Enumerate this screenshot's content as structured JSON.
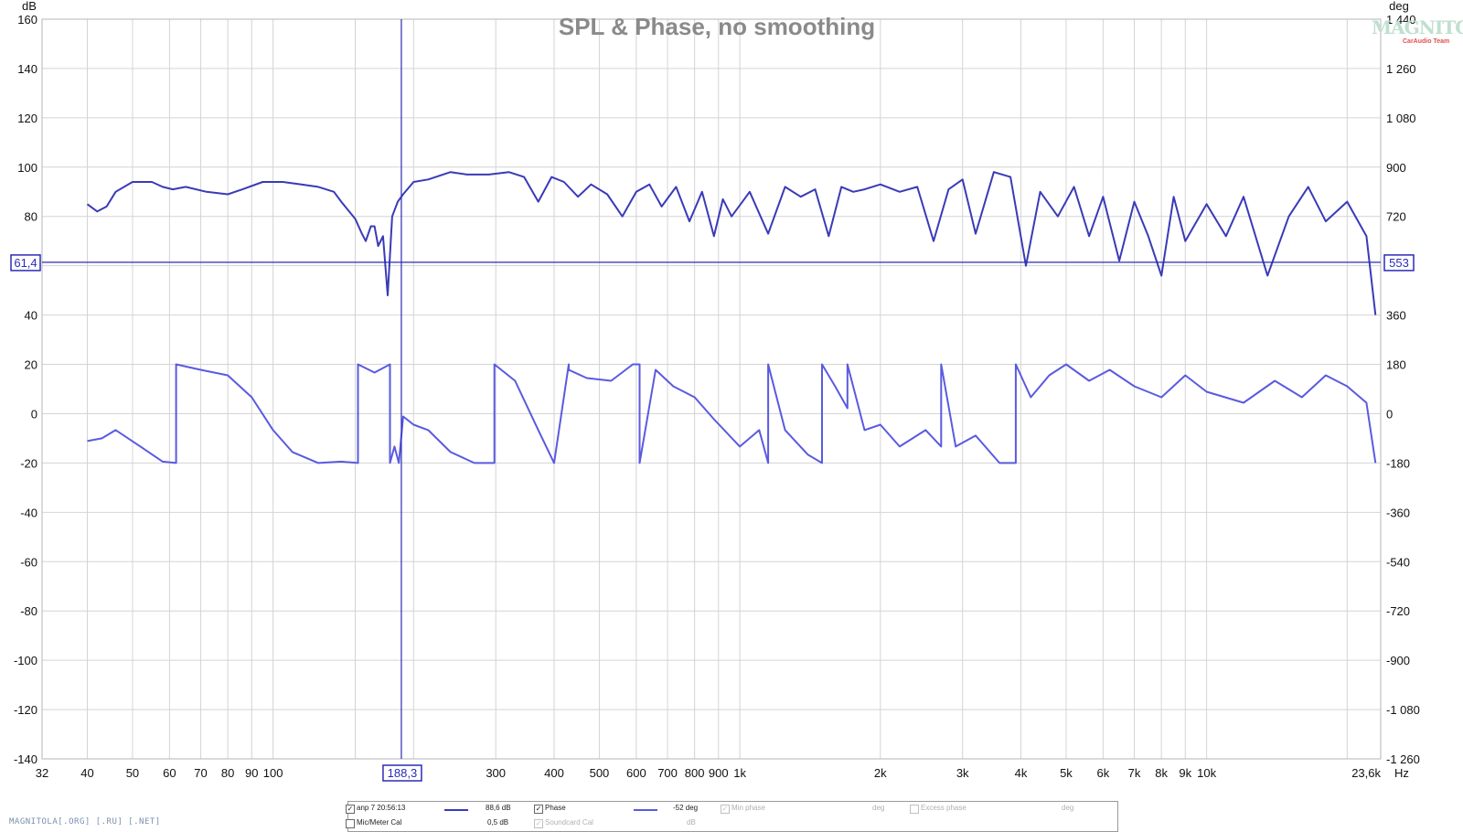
{
  "chart_data": {
    "type": "line",
    "title": "SPL & Phase, no smoothing",
    "xscale": "log",
    "xlim": [
      32,
      23600
    ],
    "ylim_left": [
      -140,
      160
    ],
    "ylim_right": [
      -1260,
      1440
    ],
    "left_unit": "dB",
    "right_unit": "deg",
    "x_unit": "Hz",
    "grid": true,
    "x_tick_labels": [
      {
        "v": 32,
        "t": "32"
      },
      {
        "v": 40,
        "t": "40"
      },
      {
        "v": 50,
        "t": "50"
      },
      {
        "v": 60,
        "t": "60"
      },
      {
        "v": 70,
        "t": "70"
      },
      {
        "v": 80,
        "t": "80"
      },
      {
        "v": 90,
        "t": "90"
      },
      {
        "v": 100,
        "t": "100"
      },
      {
        "v": 300,
        "t": "300"
      },
      {
        "v": 400,
        "t": "400"
      },
      {
        "v": 500,
        "t": "500"
      },
      {
        "v": 600,
        "t": "600"
      },
      {
        "v": 700,
        "t": "700"
      },
      {
        "v": 800,
        "t": "800"
      },
      {
        "v": 900,
        "t": "900"
      },
      {
        "v": 1000,
        "t": "1k"
      },
      {
        "v": 2000,
        "t": "2k"
      },
      {
        "v": 3000,
        "t": "3k"
      },
      {
        "v": 4000,
        "t": "4k"
      },
      {
        "v": 5000,
        "t": "5k"
      },
      {
        "v": 6000,
        "t": "6k"
      },
      {
        "v": 7000,
        "t": "7k"
      },
      {
        "v": 8000,
        "t": "8k"
      },
      {
        "v": 9000,
        "t": "9k"
      },
      {
        "v": 10000,
        "t": "10k"
      },
      {
        "v": 23600,
        "t": "23,6k"
      }
    ],
    "x_grid": [
      32,
      40,
      50,
      60,
      70,
      80,
      90,
      100,
      150,
      200,
      300,
      400,
      500,
      600,
      700,
      800,
      900,
      1000,
      2000,
      3000,
      4000,
      5000,
      6000,
      7000,
      8000,
      9000,
      10000,
      20000
    ],
    "y_left_ticks": [
      {
        "v": 160,
        "t": "160"
      },
      {
        "v": 140,
        "t": "140"
      },
      {
        "v": 120,
        "t": "120"
      },
      {
        "v": 100,
        "t": "100"
      },
      {
        "v": 80,
        "t": "80"
      },
      {
        "v": 40,
        "t": "40"
      },
      {
        "v": 20,
        "t": "20"
      },
      {
        "v": 0,
        "t": "0"
      },
      {
        "v": -20,
        "t": "-20"
      },
      {
        "v": -40,
        "t": "-40"
      },
      {
        "v": -60,
        "t": "-60"
      },
      {
        "v": -80,
        "t": "-80"
      },
      {
        "v": -100,
        "t": "-100"
      },
      {
        "v": -120,
        "t": "-120"
      },
      {
        "v": -140,
        "t": "-140"
      }
    ],
    "y_right_ticks": [
      {
        "v": 1440,
        "t": "1 440"
      },
      {
        "v": 1260,
        "t": "1 260"
      },
      {
        "v": 1080,
        "t": "1 080"
      },
      {
        "v": 900,
        "t": "900"
      },
      {
        "v": 720,
        "t": "720"
      },
      {
        "v": 360,
        "t": "360"
      },
      {
        "v": 180,
        "t": "180"
      },
      {
        "v": 0,
        "t": "0"
      },
      {
        "v": -180,
        "t": "-180"
      },
      {
        "v": -360,
        "t": "-360"
      },
      {
        "v": -540,
        "t": "-540"
      },
      {
        "v": -720,
        "t": "-720"
      },
      {
        "v": -900,
        "t": "-900"
      },
      {
        "v": -1080,
        "t": "-1 080"
      },
      {
        "v": -1260,
        "t": "-1 260"
      }
    ],
    "y_grid_left": [
      160,
      140,
      120,
      100,
      80,
      60,
      40,
      20,
      0,
      -20,
      -40,
      -60,
      -80,
      -100,
      -120,
      -140
    ],
    "cursor": {
      "x": 188.3,
      "x_label": "188,3",
      "y": 61.4,
      "y_label": "61,4",
      "y_right_label": "553"
    },
    "series": [
      {
        "name": "anp 7 20:56:13",
        "axis": "left",
        "color": "#3a3ab8",
        "x": [
          40,
          42,
          44,
          46,
          50,
          55,
          58,
          61,
          65,
          72,
          80,
          86,
          95,
          105,
          115,
          125,
          135,
          140,
          150,
          155,
          158,
          162,
          165,
          168,
          172,
          176,
          180,
          185,
          190,
          200,
          215,
          240,
          260,
          290,
          320,
          345,
          370,
          395,
          420,
          450,
          480,
          520,
          560,
          600,
          640,
          680,
          730,
          780,
          830,
          880,
          920,
          960,
          1050,
          1150,
          1250,
          1350,
          1450,
          1550,
          1650,
          1750,
          1850,
          2000,
          2200,
          2400,
          2600,
          2800,
          3000,
          3200,
          3500,
          3800,
          4100,
          4400,
          4800,
          5200,
          5600,
          6000,
          6500,
          7000,
          7500,
          8000,
          8500,
          9000,
          10000,
          11000,
          12000,
          13500,
          15000,
          16500,
          18000,
          20000,
          22000,
          23000
        ],
        "y": [
          85,
          82,
          84,
          90,
          94,
          94,
          92,
          91,
          92,
          90,
          89,
          91,
          94,
          94,
          93,
          92,
          90,
          86,
          79,
          73,
          70,
          76,
          76,
          68,
          72,
          48,
          80,
          86,
          89,
          94,
          95,
          98,
          97,
          97,
          98,
          96,
          86,
          96,
          94,
          88,
          93,
          89,
          80,
          90,
          93,
          84,
          92,
          78,
          90,
          72,
          87,
          80,
          90,
          73,
          92,
          88,
          91,
          72,
          92,
          90,
          91,
          93,
          90,
          92,
          70,
          91,
          95,
          73,
          98,
          96,
          60,
          90,
          80,
          92,
          72,
          88,
          62,
          86,
          72,
          56,
          88,
          70,
          85,
          72,
          88,
          56,
          80,
          92,
          78,
          86,
          72,
          40
        ]
      },
      {
        "name": "Phase",
        "axis": "right",
        "color": "#5a5ae0",
        "x": [
          40,
          43,
          46,
          52,
          58,
          62,
          62,
          70,
          80,
          90,
          100,
          110,
          125,
          140,
          152,
          152,
          165,
          178,
          178,
          182,
          186,
          190,
          200,
          215,
          240,
          270,
          298,
          298,
          330,
          370,
          400,
          430,
          430,
          470,
          530,
          590,
          610,
          610,
          660,
          720,
          800,
          880,
          1000,
          1100,
          1150,
          1150,
          1250,
          1400,
          1500,
          1500,
          1600,
          1700,
          1700,
          1850,
          2000,
          2200,
          2500,
          2700,
          2700,
          2900,
          3200,
          3600,
          3900,
          3900,
          4200,
          4600,
          5000,
          5600,
          6200,
          7000,
          8000,
          9000,
          10000,
          12000,
          14000,
          16000,
          18000,
          20000,
          22000,
          23000
        ],
        "y": [
          -100,
          -90,
          -60,
          -120,
          -175,
          -180,
          180,
          160,
          140,
          60,
          -60,
          -140,
          -180,
          -175,
          -180,
          180,
          150,
          180,
          -180,
          -120,
          -180,
          -10,
          -40,
          -60,
          -140,
          -180,
          -180,
          180,
          120,
          -60,
          -180,
          180,
          160,
          130,
          120,
          180,
          180,
          -180,
          160,
          100,
          60,
          -20,
          -120,
          -60,
          -180,
          180,
          -60,
          -150,
          -180,
          180,
          100,
          20,
          180,
          -60,
          -40,
          -120,
          -60,
          -120,
          180,
          -120,
          -80,
          -180,
          -180,
          180,
          60,
          140,
          180,
          120,
          160,
          100,
          60,
          140,
          80,
          40,
          120,
          60,
          140,
          100,
          40,
          -180
        ]
      }
    ]
  },
  "legend": {
    "row1": {
      "trace_name": "anp 7 20:56:13",
      "trace_value": "88,6 dB",
      "phase_label": "Phase",
      "phase_value": "-52 deg",
      "minphase_label": "Min phase",
      "minphase_unit": "deg",
      "excess_label": "Excess phase",
      "excess_unit": "deg"
    },
    "row2": {
      "miccal_label": "Mic/Meter Cal",
      "miccal_value": "0,5 dB",
      "soundcard_label": "Soundcard Cal",
      "soundcard_unit": "dB"
    },
    "checkmark": "✓"
  },
  "logo_text": "MAGNITOLA",
  "logo_sub": "CarAudio Team",
  "watermark": "MAGNITOLA[.ORG] [.RU] [.NET]"
}
